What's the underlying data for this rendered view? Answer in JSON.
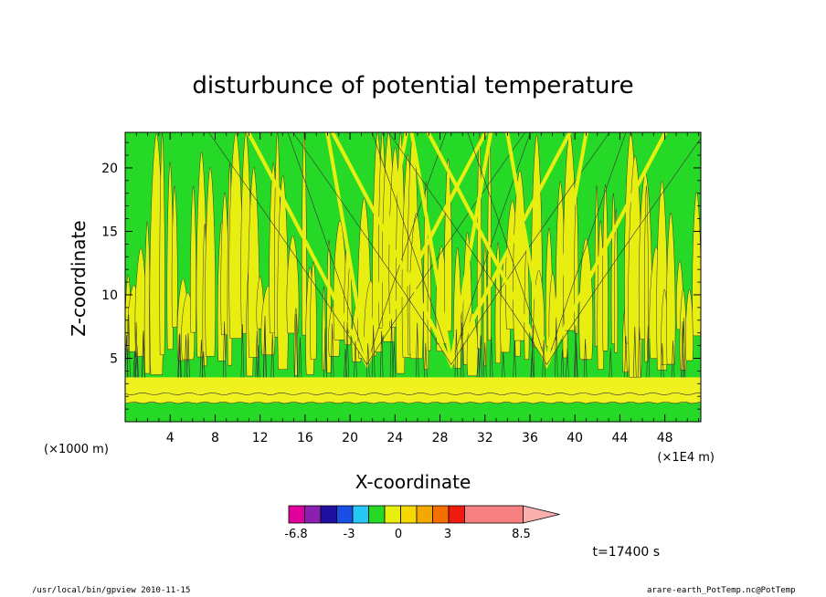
{
  "chart_data": {
    "type": "heatmap",
    "title": "disturbunce of potential temperature",
    "xlabel": "X-coordinate",
    "ylabel": "Z-coordinate",
    "x_unit_left": "(×1000 m)",
    "x_unit_right": "(×1E4 m)",
    "x_ticks": [
      "4",
      "8",
      "12",
      "16",
      "20",
      "24",
      "28",
      "32",
      "36",
      "40",
      "44",
      "48"
    ],
    "x_tick_values": [
      4,
      8,
      12,
      16,
      20,
      24,
      28,
      32,
      36,
      40,
      44,
      48
    ],
    "y_ticks": [
      "5",
      "10",
      "15",
      "20"
    ],
    "y_tick_values": [
      5,
      10,
      15,
      20
    ],
    "xlim": [
      0,
      51.2
    ],
    "ylim": [
      0,
      22.8
    ],
    "colorbar": {
      "labels": [
        "-6.8",
        "-3",
        "0",
        "3",
        "8.5"
      ],
      "label_values": [
        -6.8,
        -3,
        0,
        3,
        8.5
      ],
      "colors": [
        "#e0009b",
        "#8a20b0",
        "#2010a0",
        "#1a4fe6",
        "#27c8f5",
        "#26d926",
        "#e8ef10",
        "#f5d800",
        "#f5a800",
        "#f56e00",
        "#ef1a10",
        "#f78080",
        "#fbb0b0"
      ]
    },
    "band_bottom": {
      "z_range": [
        1.5,
        2.2
      ],
      "color": "#f0f220"
    },
    "layers": {
      "green_above_z": 3.5,
      "green_below_z": 1.5
    },
    "plume_centers_x": [
      21.5,
      29,
      37.5
    ],
    "time_label": "t=17400 s"
  },
  "footer": {
    "left": "/usr/local/bin/gpview   2010-11-15",
    "right": "arare-earth_PotTemp.nc@PotTemp"
  }
}
